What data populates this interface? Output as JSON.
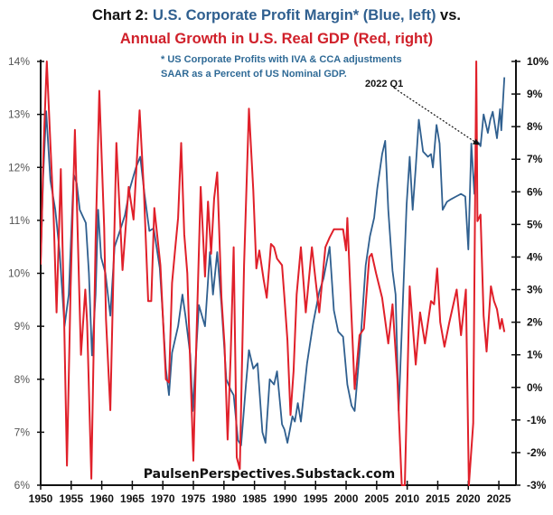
{
  "chart_data": {
    "type": "line",
    "title": {
      "prefix": "Chart 2: ",
      "blue_part": "U.S. Corporate Profit Margin* (Blue, left)",
      "suffix": " vs.",
      "line2": "Annual Growth in U.S. Real GDP (Red, right)"
    },
    "notes": [
      "* US Corporate Profits with IVA & CCA adjustments",
      "SAAR as a Percent of  US Nominal GDP."
    ],
    "source": "PaulsenPerspectives.Substack.com",
    "annotation": {
      "label": "2022 Q1",
      "x": 2022.0,
      "y_left": 12.4
    },
    "xlim": [
      1950,
      2027.8
    ],
    "x_ticks": [
      1950,
      1955,
      1960,
      1965,
      1970,
      1975,
      1980,
      1985,
      1990,
      1995,
      2000,
      2005,
      2010,
      2015,
      2020,
      2025
    ],
    "y_left": {
      "lim": [
        6,
        14
      ],
      "ticks": [
        6,
        7,
        8,
        9,
        10,
        11,
        12,
        13,
        14
      ],
      "tick_labels": [
        "6%",
        "7%",
        "8%",
        "9%",
        "10%",
        "11%",
        "12%",
        "13%",
        "14%"
      ]
    },
    "y_right": {
      "lim": [
        -3,
        10
      ],
      "ticks": [
        -3,
        -2,
        -1,
        0,
        1,
        2,
        3,
        4,
        5,
        6,
        7,
        8,
        9,
        10
      ],
      "tick_labels": [
        "-3%",
        "-2%",
        "-1%",
        "0%",
        "1%",
        "2%",
        "3%",
        "4%",
        "5%",
        "6%",
        "7%",
        "8%",
        "9%",
        "10%"
      ]
    },
    "grid": false,
    "colors": {
      "blue": "#2f5f8f",
      "red": "#e0202a"
    },
    "series": [
      {
        "axis": "left",
        "color": "blue",
        "points": [
          [
            1950.0,
            10.2
          ],
          [
            1950.4,
            11.8
          ],
          [
            1950.9,
            13.06
          ],
          [
            1951.6,
            11.75
          ],
          [
            1952.4,
            11.2
          ],
          [
            1953.1,
            10.4
          ],
          [
            1953.9,
            9.0
          ],
          [
            1954.6,
            9.6
          ],
          [
            1955.4,
            11.87
          ],
          [
            1955.9,
            11.7
          ],
          [
            1956.4,
            11.2
          ],
          [
            1957.4,
            10.95
          ],
          [
            1957.9,
            10.0
          ],
          [
            1958.4,
            8.45
          ],
          [
            1959.0,
            9.6
          ],
          [
            1959.4,
            11.2
          ],
          [
            1959.9,
            10.3
          ],
          [
            1960.6,
            10.0
          ],
          [
            1961.4,
            9.2
          ],
          [
            1962.1,
            10.5
          ],
          [
            1963.1,
            10.85
          ],
          [
            1963.8,
            11.1
          ],
          [
            1964.6,
            11.6
          ],
          [
            1965.6,
            12.0
          ],
          [
            1966.3,
            12.2
          ],
          [
            1967.0,
            11.5
          ],
          [
            1967.8,
            10.8
          ],
          [
            1968.5,
            10.85
          ],
          [
            1969.5,
            10.1
          ],
          [
            1970.0,
            9.2
          ],
          [
            1970.5,
            8.2
          ],
          [
            1971.0,
            7.7
          ],
          [
            1971.5,
            8.5
          ],
          [
            1972.5,
            9.0
          ],
          [
            1973.2,
            9.6
          ],
          [
            1973.7,
            9.2
          ],
          [
            1974.5,
            8.45
          ],
          [
            1974.9,
            7.4
          ],
          [
            1975.9,
            9.4
          ],
          [
            1976.9,
            9.0
          ],
          [
            1977.7,
            10.4
          ],
          [
            1978.2,
            9.6
          ],
          [
            1978.9,
            10.4
          ],
          [
            1979.6,
            9.4
          ],
          [
            1980.4,
            8.0
          ],
          [
            1981.1,
            7.8
          ],
          [
            1981.6,
            7.7
          ],
          [
            1982.3,
            6.85
          ],
          [
            1982.8,
            6.75
          ],
          [
            1983.6,
            7.9
          ],
          [
            1984.1,
            8.55
          ],
          [
            1984.8,
            8.2
          ],
          [
            1985.5,
            8.3
          ],
          [
            1986.3,
            7.0
          ],
          [
            1986.8,
            6.8
          ],
          [
            1987.5,
            8.0
          ],
          [
            1988.2,
            7.9
          ],
          [
            1988.7,
            8.15
          ],
          [
            1989.5,
            7.15
          ],
          [
            1989.9,
            7.05
          ],
          [
            1990.4,
            6.8
          ],
          [
            1991.2,
            7.3
          ],
          [
            1991.6,
            7.2
          ],
          [
            1992.1,
            7.55
          ],
          [
            1992.6,
            7.2
          ],
          [
            1993.6,
            8.3
          ],
          [
            1994.6,
            9.05
          ],
          [
            1995.6,
            9.65
          ],
          [
            1996.3,
            9.9
          ],
          [
            1997.3,
            10.5
          ],
          [
            1998.0,
            9.3
          ],
          [
            1998.7,
            8.9
          ],
          [
            1999.5,
            8.8
          ],
          [
            2000.2,
            7.9
          ],
          [
            2000.9,
            7.5
          ],
          [
            2001.4,
            7.4
          ],
          [
            2002.4,
            8.8
          ],
          [
            2003.2,
            10.15
          ],
          [
            2003.9,
            10.7
          ],
          [
            2004.6,
            11.05
          ],
          [
            2005.1,
            11.6
          ],
          [
            2005.9,
            12.25
          ],
          [
            2006.4,
            12.5
          ],
          [
            2006.9,
            11.2
          ],
          [
            2007.6,
            10.05
          ],
          [
            2008.1,
            9.6
          ],
          [
            2008.6,
            7.4
          ],
          [
            2009.1,
            8.9
          ],
          [
            2009.9,
            11.3
          ],
          [
            2010.4,
            12.2
          ],
          [
            2010.9,
            11.2
          ],
          [
            2011.4,
            12.0
          ],
          [
            2011.9,
            12.9
          ],
          [
            2012.6,
            12.3
          ],
          [
            2013.4,
            12.2
          ],
          [
            2013.9,
            12.25
          ],
          [
            2014.2,
            12.0
          ],
          [
            2014.8,
            12.8
          ],
          [
            2015.3,
            12.45
          ],
          [
            2015.8,
            11.2
          ],
          [
            2016.5,
            11.35
          ],
          [
            2017.2,
            11.4
          ],
          [
            2018.0,
            11.45
          ],
          [
            2018.8,
            11.5
          ],
          [
            2019.5,
            11.45
          ],
          [
            2020.0,
            10.45
          ],
          [
            2020.5,
            12.45
          ],
          [
            2021.0,
            11.5
          ],
          [
            2021.3,
            12.5
          ],
          [
            2021.8,
            12.45
          ],
          [
            2022.0,
            12.4
          ],
          [
            2022.5,
            13.0
          ],
          [
            2023.2,
            12.65
          ],
          [
            2023.6,
            12.9
          ],
          [
            2024.0,
            13.05
          ],
          [
            2024.7,
            12.55
          ],
          [
            2025.2,
            13.1
          ],
          [
            2025.4,
            12.7
          ],
          [
            2025.9,
            13.7
          ]
        ]
      },
      {
        "axis": "right",
        "color": "red",
        "points": [
          [
            1950.0,
            3.77
          ],
          [
            1950.5,
            7.5
          ],
          [
            1951.0,
            10.0
          ],
          [
            1951.6,
            7.45
          ],
          [
            1952.1,
            5.4
          ],
          [
            1952.6,
            2.3
          ],
          [
            1953.3,
            6.7
          ],
          [
            1953.8,
            2.5
          ],
          [
            1954.3,
            -2.4
          ],
          [
            1954.9,
            3.0
          ],
          [
            1955.6,
            7.9
          ],
          [
            1956.6,
            1.0
          ],
          [
            1957.3,
            3.0
          ],
          [
            1957.6,
            2.0
          ],
          [
            1958.3,
            -2.8
          ],
          [
            1959.0,
            4.5
          ],
          [
            1959.6,
            9.1
          ],
          [
            1960.4,
            4.9
          ],
          [
            1960.7,
            2.1
          ],
          [
            1961.4,
            -0.7
          ],
          [
            1962.4,
            7.5
          ],
          [
            1963.4,
            3.6
          ],
          [
            1964.4,
            6.15
          ],
          [
            1965.2,
            5.15
          ],
          [
            1966.2,
            8.5
          ],
          [
            1966.9,
            6.0
          ],
          [
            1967.6,
            2.65
          ],
          [
            1968.1,
            2.65
          ],
          [
            1968.6,
            5.5
          ],
          [
            1969.6,
            3.75
          ],
          [
            1970.5,
            0.25
          ],
          [
            1971.0,
            0.15
          ],
          [
            1971.5,
            3.2
          ],
          [
            1972.0,
            4.2
          ],
          [
            1972.5,
            5.2
          ],
          [
            1973.0,
            7.5
          ],
          [
            1973.5,
            4.7
          ],
          [
            1974.0,
            3.5
          ],
          [
            1974.6,
            0.05
          ],
          [
            1975.0,
            -2.25
          ],
          [
            1975.5,
            1.5
          ],
          [
            1976.2,
            6.15
          ],
          [
            1976.9,
            3.4
          ],
          [
            1977.4,
            5.7
          ],
          [
            1977.9,
            4.1
          ],
          [
            1978.4,
            5.8
          ],
          [
            1978.9,
            6.6
          ],
          [
            1979.6,
            2.75
          ],
          [
            1980.1,
            1.3
          ],
          [
            1980.6,
            -1.6
          ],
          [
            1981.1,
            1.0
          ],
          [
            1981.6,
            4.3
          ],
          [
            1982.1,
            -2.15
          ],
          [
            1982.6,
            -2.5
          ],
          [
            1983.3,
            3.75
          ],
          [
            1984.1,
            8.55
          ],
          [
            1984.8,
            6.05
          ],
          [
            1985.3,
            3.65
          ],
          [
            1985.8,
            4.2
          ],
          [
            1986.5,
            3.3
          ],
          [
            1987.0,
            2.75
          ],
          [
            1987.7,
            4.4
          ],
          [
            1988.2,
            4.3
          ],
          [
            1988.7,
            3.95
          ],
          [
            1989.5,
            3.75
          ],
          [
            1989.9,
            2.75
          ],
          [
            1990.4,
            1.45
          ],
          [
            1990.9,
            -0.85
          ],
          [
            1991.4,
            0.5
          ],
          [
            1991.9,
            2.85
          ],
          [
            1992.6,
            4.3
          ],
          [
            1993.4,
            2.3
          ],
          [
            1994.4,
            4.3
          ],
          [
            1995.0,
            3.3
          ],
          [
            1995.6,
            2.3
          ],
          [
            1996.6,
            4.3
          ],
          [
            1997.3,
            4.6
          ],
          [
            1998.0,
            4.85
          ],
          [
            1998.8,
            4.85
          ],
          [
            1999.5,
            4.85
          ],
          [
            2000.0,
            4.2
          ],
          [
            2000.2,
            5.2
          ],
          [
            2000.8,
            2.5
          ],
          [
            2001.4,
            -0.05
          ],
          [
            2002.2,
            1.6
          ],
          [
            2002.9,
            1.8
          ],
          [
            2003.8,
            4.0
          ],
          [
            2004.2,
            4.1
          ],
          [
            2004.9,
            3.5
          ],
          [
            2005.9,
            2.75
          ],
          [
            2006.9,
            1.35
          ],
          [
            2007.6,
            2.55
          ],
          [
            2008.4,
            0.25
          ],
          [
            2009.1,
            -3.0
          ],
          [
            2009.6,
            -3.0
          ],
          [
            2010.4,
            3.1
          ],
          [
            2011.4,
            0.7
          ],
          [
            2012.1,
            2.3
          ],
          [
            2012.9,
            1.35
          ],
          [
            2013.9,
            2.65
          ],
          [
            2014.4,
            2.55
          ],
          [
            2014.9,
            3.65
          ],
          [
            2015.4,
            2.0
          ],
          [
            2016.1,
            1.25
          ],
          [
            2016.9,
            2.0
          ],
          [
            2018.1,
            3.0
          ],
          [
            2018.8,
            1.6
          ],
          [
            2019.6,
            3.0
          ],
          [
            2020.1,
            -3.0
          ],
          [
            2020.8,
            -1.1
          ],
          [
            2021.3,
            10.0
          ],
          [
            2021.5,
            5.1
          ],
          [
            2022.0,
            5.3
          ],
          [
            2022.5,
            2.2
          ],
          [
            2023.0,
            1.1
          ],
          [
            2023.7,
            3.1
          ],
          [
            2024.2,
            2.65
          ],
          [
            2024.7,
            2.4
          ],
          [
            2025.2,
            1.8
          ],
          [
            2025.5,
            2.1
          ],
          [
            2025.9,
            1.7
          ]
        ]
      }
    ]
  }
}
